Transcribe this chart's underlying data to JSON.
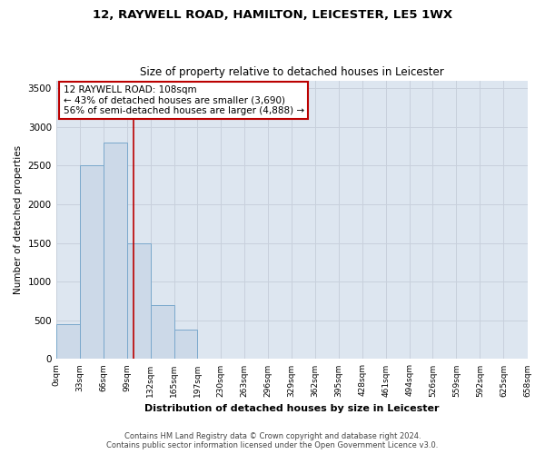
{
  "title1": "12, RAYWELL ROAD, HAMILTON, LEICESTER, LE5 1WX",
  "title2": "Size of property relative to detached houses in Leicester",
  "xlabel": "Distribution of detached houses by size in Leicester",
  "ylabel": "Number of detached properties",
  "bar_values": [
    450,
    2500,
    2800,
    1500,
    700,
    375,
    0,
    0,
    0,
    0,
    0,
    0,
    0,
    0,
    0,
    0,
    0,
    0,
    0,
    0
  ],
  "bin_edges": [
    0,
    33,
    66,
    99,
    132,
    165,
    197,
    230,
    263,
    296,
    329,
    362,
    395,
    428,
    461,
    494,
    526,
    559,
    592,
    625,
    658
  ],
  "tick_labels": [
    "0sqm",
    "33sqm",
    "66sqm",
    "99sqm",
    "132sqm",
    "165sqm",
    "197sqm",
    "230sqm",
    "263sqm",
    "296sqm",
    "329sqm",
    "362sqm",
    "395sqm",
    "428sqm",
    "461sqm",
    "494sqm",
    "526sqm",
    "559sqm",
    "592sqm",
    "625sqm",
    "658sqm"
  ],
  "bar_color": "#ccd9e8",
  "bar_edge_color": "#7aa8cc",
  "grid_color": "#c8d0dc",
  "bg_color": "#dde6f0",
  "vline_x": 108,
  "vline_color": "#bb0000",
  "annotation_line1": "12 RAYWELL ROAD: 108sqm",
  "annotation_line2": "← 43% of detached houses are smaller (3,690)",
  "annotation_line3": "56% of semi-detached houses are larger (4,888) →",
  "annotation_box_color": "#ffffff",
  "annotation_box_edge": "#bb0000",
  "ylim": [
    0,
    3600
  ],
  "yticks": [
    0,
    500,
    1000,
    1500,
    2000,
    2500,
    3000,
    3500
  ],
  "footer1": "Contains HM Land Registry data © Crown copyright and database right 2024.",
  "footer2": "Contains public sector information licensed under the Open Government Licence v3.0."
}
